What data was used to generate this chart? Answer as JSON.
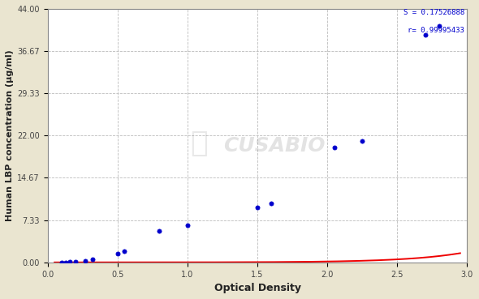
{
  "xlabel": "Optical Density",
  "ylabel": "Human LBP concentration (μg/ml)",
  "equation_line1": "S = 0.17526888",
  "equation_line2": "r= 0.99995433",
  "x_data": [
    0.1,
    0.13,
    0.16,
    0.2,
    0.27,
    0.32,
    0.5,
    0.55,
    0.8,
    1.0,
    1.5,
    1.6,
    2.05,
    2.25,
    2.7,
    2.8
  ],
  "y_data": [
    0.0,
    0.0,
    0.05,
    0.1,
    0.3,
    0.5,
    1.5,
    2.0,
    5.5,
    6.5,
    9.5,
    10.2,
    20.0,
    21.0,
    39.5,
    41.0
  ],
  "xlim": [
    0.0,
    3.0
  ],
  "ylim": [
    0.0,
    44.0
  ],
  "xticks": [
    0.0,
    0.5,
    1.0,
    1.5,
    2.0,
    2.5,
    3.0
  ],
  "xtick_labels": [
    "0.0",
    "0.5",
    "1.0",
    "1.5",
    "2.0",
    "2.5",
    "3.0"
  ],
  "yticks": [
    0.0,
    7.33,
    14.67,
    22.0,
    29.33,
    36.67,
    44.0
  ],
  "ytick_labels": [
    "0.00",
    "7.33",
    "14.67",
    "22.00",
    "29.33",
    "36.67",
    "44.00"
  ],
  "fig_bg_color": "#EAE5D0",
  "plot_bg_color": "#FFFFFF",
  "line_color": "#EE0000",
  "dot_color": "#0000CC",
  "grid_color": "#BBBBBB",
  "text_color": "#0000CC",
  "tick_color": "#444444",
  "label_color": "#222222",
  "watermark_color": "#CCCCBB",
  "figsize": [
    5.9,
    3.69
  ],
  "dpi": 100
}
